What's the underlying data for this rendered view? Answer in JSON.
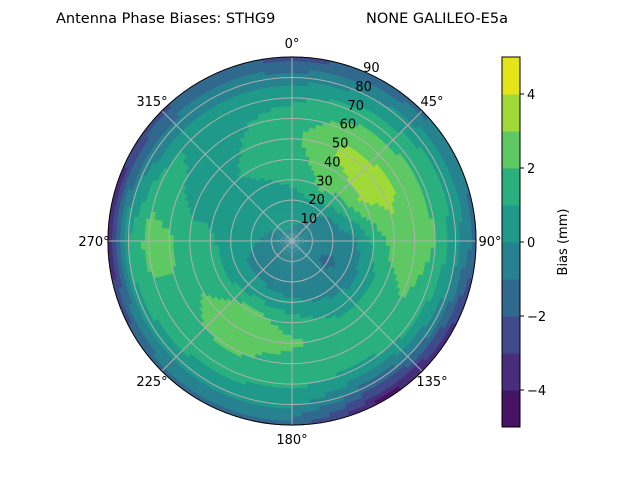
{
  "chart_data": {
    "type": "heatmap",
    "subtype": "polar-contour",
    "title_left": "Antenna Phase Biases: STHG9",
    "title_right": "NONE GALILEO-E5a",
    "theta_direction": "clockwise",
    "theta_zero": "north",
    "theta_tick_labels": [
      "0°",
      "45°",
      "90°",
      "135°",
      "180°",
      "225°",
      "270°",
      "315°"
    ],
    "theta_ticks": [
      0,
      45,
      90,
      135,
      180,
      225,
      270,
      315
    ],
    "r_tick_labels": [
      "10",
      "20",
      "30",
      "40",
      "50",
      "60",
      "70",
      "80",
      "90"
    ],
    "r_ticks": [
      10,
      20,
      30,
      40,
      50,
      60,
      70,
      80,
      90
    ],
    "rlim": [
      0,
      90
    ],
    "grid": true,
    "colorbar": {
      "label": "Bias (mm)",
      "levels": [
        -5,
        -4,
        -3,
        -2,
        -1,
        0,
        1,
        2,
        3,
        4,
        5
      ],
      "tick_values": [
        -4,
        -2,
        0,
        2,
        4
      ],
      "tick_labels": [
        "−4",
        "−2",
        "0",
        "2",
        "4"
      ],
      "colors": [
        "#471365",
        "#472d7b",
        "#3e4a89",
        "#31688e",
        "#26828e",
        "#1f9a8a",
        "#2ab07f",
        "#5ec962",
        "#a0da39",
        "#e5e419"
      ],
      "placement": "right"
    },
    "grid_azimuth_deg": [
      0,
      30,
      60,
      90,
      120,
      150,
      180,
      210,
      240,
      270,
      300,
      330
    ],
    "grid_zenith_deg": [
      0,
      10,
      20,
      30,
      40,
      50,
      60,
      70,
      80,
      90
    ],
    "values_mm": [
      [
        -0.5,
        -0.5,
        -0.5,
        -0.5,
        -0.5,
        -0.5,
        -0.5,
        -0.5,
        -0.5,
        -0.5,
        -0.5,
        -0.5
      ],
      [
        0.2,
        0.0,
        -0.5,
        -0.5,
        -0.8,
        -0.5,
        -0.5,
        -0.5,
        -0.5,
        -0.3,
        0.0,
        0.3
      ],
      [
        0.6,
        0.8,
        -0.3,
        -0.6,
        -1.2,
        -0.6,
        -0.7,
        -0.5,
        -0.3,
        0.2,
        0.3,
        0.6
      ],
      [
        1.2,
        2.2,
        1.5,
        -0.3,
        -0.8,
        -0.3,
        0.2,
        0.5,
        0.3,
        0.5,
        0.2,
        0.8
      ],
      [
        1.5,
        2.8,
        3.2,
        1.2,
        0.5,
        0.8,
        1.5,
        2.5,
        1.5,
        1.2,
        0.5,
        1.2
      ],
      [
        1.8,
        3.2,
        3.5,
        2.5,
        1.5,
        1.5,
        2.2,
        2.7,
        2.0,
        1.5,
        0.4,
        1.0
      ],
      [
        1.5,
        2.5,
        2.7,
        2.5,
        2.0,
        1.5,
        1.5,
        2.2,
        1.8,
        2.2,
        1.0,
        0.8
      ],
      [
        0.8,
        1.5,
        1.8,
        2.0,
        1.5,
        0.8,
        1.2,
        1.3,
        1.5,
        2.5,
        1.2,
        0.5
      ],
      [
        -0.5,
        0.0,
        0.8,
        0.5,
        -0.5,
        -1.5,
        0.2,
        0.5,
        0.8,
        1.0,
        -0.5,
        -0.5
      ],
      [
        -2.5,
        -1.8,
        -0.8,
        -1.5,
        -3.5,
        -4.5,
        -1.5,
        -1.2,
        -2.0,
        -4.5,
        -3.0,
        -1.5
      ]
    ]
  }
}
